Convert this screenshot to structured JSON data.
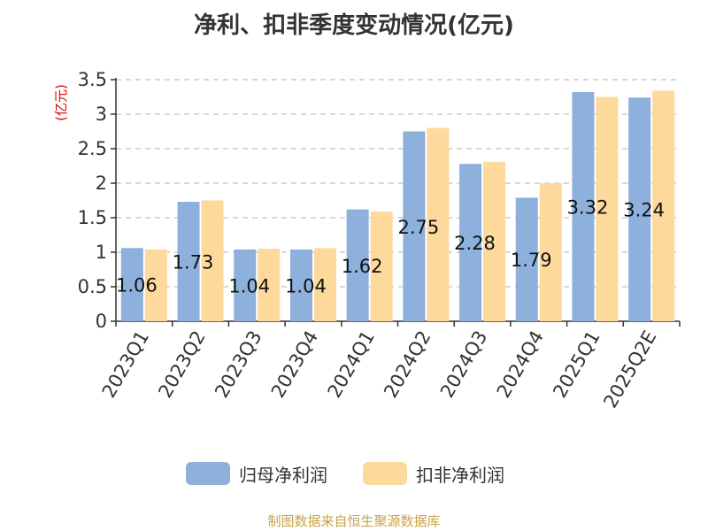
{
  "chart_data": {
    "type": "bar",
    "title": "净利、扣非季度变动情况(亿元)",
    "ylabel": "(亿元)",
    "xlabel": "",
    "ylim": [
      0,
      3.5
    ],
    "yticks": [
      0,
      0.5,
      1,
      1.5,
      2,
      2.5,
      3,
      3.5
    ],
    "ytick_labels": [
      "0",
      "0.5",
      "1",
      "1.5",
      "2",
      "2.5",
      "3",
      "3.5"
    ],
    "grid": true,
    "legend_position": "bottom",
    "categories": [
      "2023Q1",
      "2023Q2",
      "2023Q3",
      "2023Q4",
      "2024Q1",
      "2024Q2",
      "2024Q3",
      "2024Q4",
      "2025Q1",
      "2025Q2E"
    ],
    "series": [
      {
        "name": "归母净利润",
        "color": "#8eb0dd",
        "values": [
          1.06,
          1.73,
          1.04,
          1.04,
          1.62,
          2.75,
          2.28,
          1.79,
          3.32,
          3.24
        ],
        "data_labels": [
          "1.06",
          "1.73",
          "1.04",
          "1.04",
          "1.62",
          "2.75",
          "2.28",
          "1.79",
          "3.32",
          "3.24"
        ]
      },
      {
        "name": "扣非净利润",
        "color": "#fdd99b",
        "values": [
          1.04,
          1.75,
          1.05,
          1.06,
          1.59,
          2.8,
          2.31,
          2.0,
          3.25,
          3.34
        ]
      }
    ]
  },
  "footer": "制图数据来自恒生聚源数据库"
}
